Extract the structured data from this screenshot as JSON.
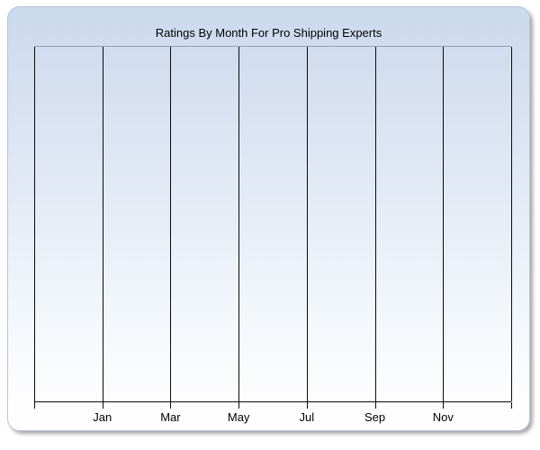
{
  "chart_data": {
    "type": "line",
    "title": "Ratings By Month For Pro Shipping Experts",
    "categories": [
      "Jan",
      "Mar",
      "May",
      "Jul",
      "Sep",
      "Nov"
    ],
    "series": [],
    "xlabel": "",
    "ylabel": "",
    "x_divisions": 7,
    "grid": true,
    "legend": false
  },
  "colors": {
    "panel_gradient_top": "#cbd9ee",
    "panel_gradient_bottom": "#ffffff",
    "panel_border": "#b9c4d6",
    "plot_top_border": "#93a0b5",
    "gridline": "#0a0a0a",
    "axis": "#0a0a0a",
    "title_text": "#000000",
    "label_text": "#000000"
  }
}
